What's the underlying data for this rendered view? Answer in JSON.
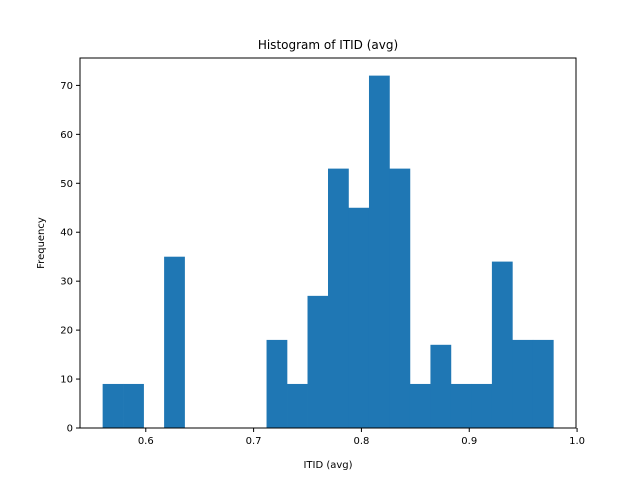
{
  "chart_data": {
    "type": "bar",
    "title": "Histogram of ITID (avg)",
    "xlabel": "ITID (avg)",
    "ylabel": "Frequency",
    "bar_color": "#1f77b4",
    "bin_edges": [
      0.56,
      0.579,
      0.598,
      0.617,
      0.636,
      0.655,
      0.674,
      0.693,
      0.712,
      0.731,
      0.75,
      0.769,
      0.788,
      0.807,
      0.826,
      0.845,
      0.864,
      0.883,
      0.902,
      0.921,
      0.94,
      0.959,
      0.978
    ],
    "values": [
      9,
      9,
      0,
      35,
      0,
      0,
      0,
      0,
      18,
      9,
      27,
      53,
      45,
      72,
      53,
      9,
      17,
      9,
      9,
      34,
      18,
      18
    ],
    "xlim": [
      0.539,
      0.999
    ],
    "ylim": [
      0,
      75.6
    ],
    "xticks": [
      0.6,
      0.7,
      0.8,
      0.9,
      1.0
    ],
    "xtick_labels": [
      "0.6",
      "0.7",
      "0.8",
      "0.9",
      "1.0"
    ],
    "yticks": [
      0,
      10,
      20,
      30,
      40,
      50,
      60,
      70
    ],
    "ytick_labels": [
      "0",
      "10",
      "20",
      "30",
      "40",
      "50",
      "60",
      "70"
    ],
    "grid": false,
    "legend": "none"
  }
}
